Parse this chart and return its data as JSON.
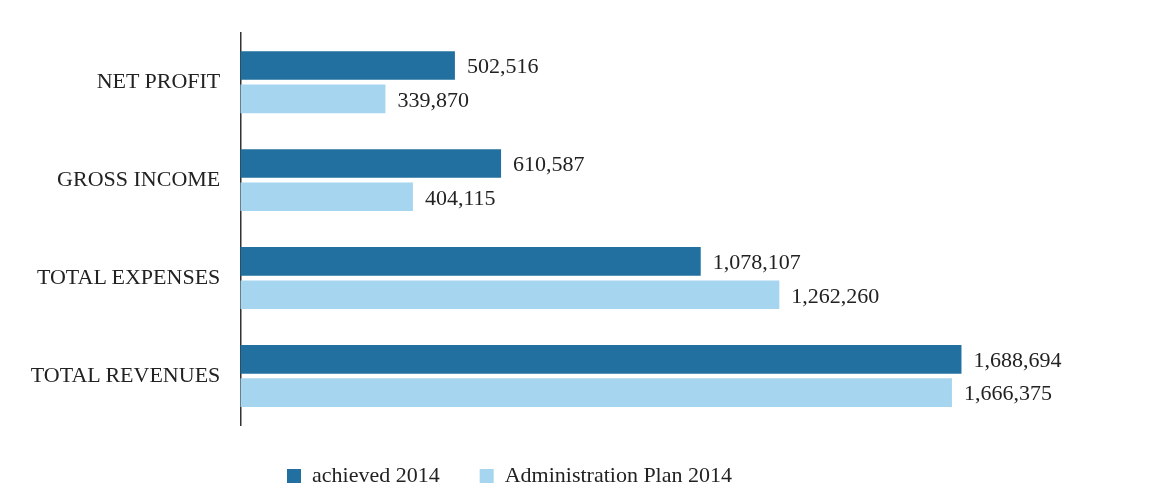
{
  "chart_data": {
    "type": "bar",
    "orientation": "horizontal",
    "categories": [
      "NET PROFIT",
      "GROSS INCOME",
      "TOTAL EXPENSES",
      "TOTAL REVENUES"
    ],
    "series": [
      {
        "name": "achieved 2014",
        "color": "#22709f",
        "values": [
          502516,
          610587,
          1078107,
          1688694
        ],
        "value_labels": [
          "502,516",
          "610,587",
          "1,078,107",
          "1,688,694"
        ]
      },
      {
        "name": "Administration Plan 2014",
        "color": "#a6d5ef",
        "values": [
          339870,
          404115,
          1262260,
          1666375
        ],
        "value_labels": [
          "339,870",
          "404,115",
          "1,262,260",
          "1,666,375"
        ]
      }
    ],
    "tick_labels": "y",
    "legend": "bottom"
  }
}
